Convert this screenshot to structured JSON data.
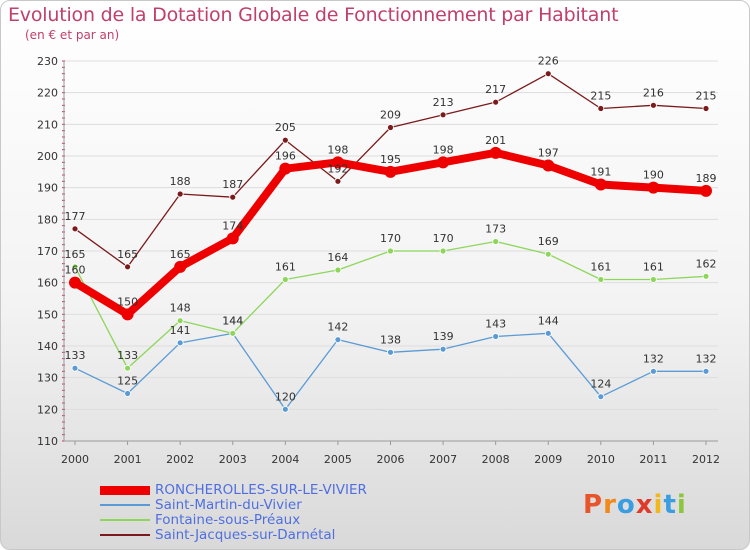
{
  "header": {
    "title": "Evolution de la Dotation Globale de Fonctionnement par Habitant",
    "subtitle": "(en € et par an)"
  },
  "logo": {
    "text": "Proxiti",
    "letters": [
      "P",
      "r",
      "o",
      "x",
      "i",
      "t",
      "i"
    ],
    "colors": [
      "#e8552a",
      "#f08a1c",
      "#3a9de0",
      "#e03a2a",
      "#f0b81c",
      "#3a9de0",
      "#8cc63f"
    ]
  },
  "chart_data": {
    "type": "line",
    "title": "Evolution de la Dotation Globale de Fonctionnement par Habitant",
    "subtitle": "(en € et par an)",
    "x": [
      "2000",
      "2001",
      "2002",
      "2003",
      "2004",
      "2005",
      "2006",
      "2007",
      "2008",
      "2009",
      "2010",
      "2011",
      "2012"
    ],
    "yticks": [
      110,
      120,
      130,
      140,
      150,
      160,
      170,
      180,
      190,
      200,
      210,
      220,
      230
    ],
    "ylim": [
      110,
      230
    ],
    "grid": "horizontal",
    "legend_position": "bottom-left",
    "series": [
      {
        "name": "RONCHEROLLES-SUR-LE-VIVIER",
        "color": "#ee0000",
        "emphasis": true,
        "values": [
          160,
          150,
          165,
          174,
          196,
          198,
          195,
          198,
          201,
          197,
          191,
          190,
          189
        ],
        "labels": [
          "160",
          "150",
          "165",
          "174",
          "196",
          "198",
          "195",
          "198",
          "201",
          "197",
          "191",
          "190",
          "189"
        ]
      },
      {
        "name": "Saint-Martin-du-Vivier",
        "color": "#5b9bd5",
        "values": [
          133,
          125,
          141,
          144,
          120,
          142,
          138,
          139,
          143,
          144,
          124,
          132,
          132
        ],
        "labels": [
          "133",
          "125",
          "141",
          "144",
          "120",
          "142",
          "138",
          "139",
          "143",
          "144",
          "124",
          "132",
          "132"
        ]
      },
      {
        "name": "Fontaine-sous-Préaux",
        "color": "#8ed65b",
        "values": [
          165,
          133,
          148,
          144,
          161,
          164,
          170,
          170,
          173,
          169,
          161,
          161,
          162
        ],
        "labels": [
          "165",
          "133",
          "148",
          "144",
          "161",
          "164",
          "170",
          "170",
          "173",
          "169",
          "161",
          "161",
          "162"
        ]
      },
      {
        "name": "Saint-Jacques-sur-Darnétal",
        "color": "#7a1a1a",
        "values": [
          177,
          165,
          188,
          187,
          205,
          192,
          209,
          213,
          217,
          226,
          215,
          216,
          215
        ],
        "labels": [
          "177",
          "165",
          "188",
          "187",
          "205",
          "192",
          "209",
          "213",
          "217",
          "226",
          "215",
          "216",
          "215"
        ]
      }
    ]
  }
}
